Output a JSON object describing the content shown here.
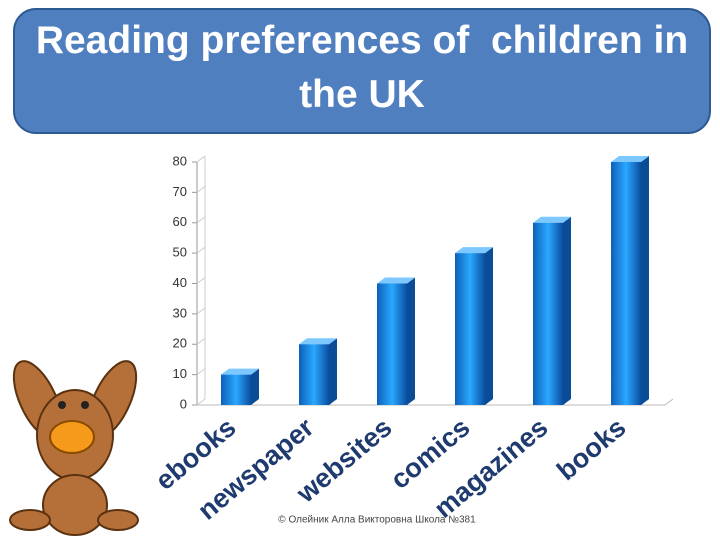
{
  "chart_data": {
    "type": "bar3d",
    "title": "Reading preferences of  children in  the UK",
    "categories": [
      "ebooks",
      "newspaper",
      "websites",
      "comics",
      "magazines",
      "books"
    ],
    "values": [
      10,
      20,
      40,
      50,
      60,
      80
    ],
    "color": "#1a8fe8",
    "ylim": [
      0,
      80
    ],
    "yticks": [
      0,
      10,
      20,
      30,
      40,
      50,
      60,
      70,
      80
    ]
  },
  "footer": "© Олейник Алла Викторовна Школа №381"
}
